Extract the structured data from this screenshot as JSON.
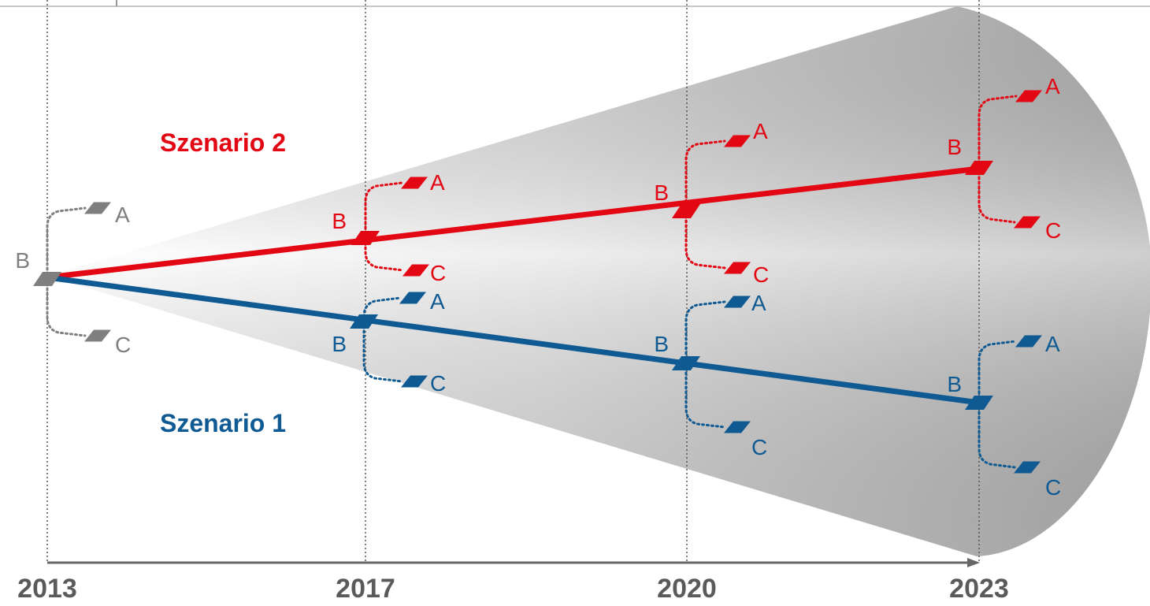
{
  "colors": {
    "scenario1": "#0f5a92",
    "scenario2": "#e30613",
    "start": "#7f7f7f",
    "axis": "#666666",
    "years": "#5a5a5a"
  },
  "timeline": {
    "years": [
      "2013",
      "2017",
      "2020",
      "2023"
    ]
  },
  "scenarios": [
    {
      "id": "scenario2",
      "label": "Szenario 2"
    },
    {
      "id": "scenario1",
      "label": "Szenario 1"
    }
  ],
  "branch_labels": {
    "a": "A",
    "b": "B",
    "c": "C"
  }
}
